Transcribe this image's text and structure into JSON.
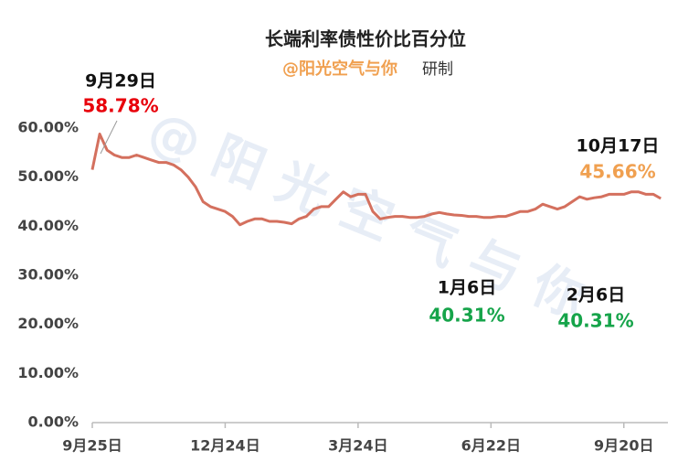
{
  "chart_data": {
    "type": "line",
    "title": "长端利率债性价比百分位",
    "subtitle": "@阳光空气与你",
    "subtitle_suffix": "研制",
    "watermark": "@ 阳 光 空 气 与 你",
    "categories": [
      "9月25日",
      null,
      null,
      null,
      null,
      null,
      null,
      null,
      null,
      null,
      null,
      null,
      null,
      null,
      null,
      null,
      null,
      null,
      "12月24日",
      null,
      null,
      null,
      null,
      null,
      null,
      null,
      null,
      null,
      null,
      null,
      null,
      null,
      null,
      null,
      null,
      null,
      "3月24日",
      null,
      null,
      null,
      null,
      null,
      null,
      null,
      null,
      null,
      null,
      null,
      null,
      null,
      null,
      null,
      null,
      null,
      "6月22日",
      null,
      null,
      null,
      null,
      null,
      null,
      null,
      null,
      null,
      null,
      null,
      null,
      null,
      null,
      null,
      null,
      null,
      "9月20日",
      null,
      null,
      null,
      null,
      null
    ],
    "series": [
      {
        "color": "#d4705e",
        "values": [
          51.5,
          58.78,
          55.5,
          54.5,
          54,
          54,
          54.5,
          54,
          53.5,
          53,
          53,
          52.5,
          51.5,
          50,
          48,
          45,
          44,
          43.5,
          43,
          42,
          40.31,
          41,
          41.5,
          41.5,
          41,
          41,
          40.8,
          40.5,
          41.5,
          42,
          43.5,
          44,
          44,
          45.5,
          47,
          46,
          46.5,
          46.5,
          43,
          41.5,
          41.8,
          42,
          42,
          41.8,
          41.8,
          42,
          42.5,
          42.8,
          42.5,
          42.3,
          42.2,
          42,
          42,
          41.8,
          41.8,
          42,
          42,
          42.5,
          43,
          43,
          43.5,
          44.5,
          44,
          43.5,
          44,
          45,
          46,
          45.5,
          45.8,
          46,
          46.5,
          46.5,
          46.5,
          47,
          47,
          46.5,
          46.5,
          45.66
        ]
      }
    ],
    "ylim": [
      0,
      60
    ],
    "yticks": [
      {
        "value": 0,
        "label": "0.00%"
      },
      {
        "value": 10,
        "label": "10.00%"
      },
      {
        "value": 20,
        "label": "20.00%"
      },
      {
        "value": 30,
        "label": "30.00%"
      },
      {
        "value": 40,
        "label": "40.00%"
      },
      {
        "value": 50,
        "label": "50.00%"
      },
      {
        "value": 60,
        "label": "60.00%"
      }
    ],
    "grid": false,
    "annotations": [
      {
        "date": "9月29日",
        "value": "58.78%",
        "color": "#e8000b"
      },
      {
        "date": "10月17日",
        "value": "45.66%",
        "color": "#f0a050"
      },
      {
        "date": "1月6日",
        "value": "40.31%",
        "color": "#16a44a"
      },
      {
        "date": "2月6日",
        "value": "40.31%",
        "color": "#16a44a"
      }
    ]
  }
}
